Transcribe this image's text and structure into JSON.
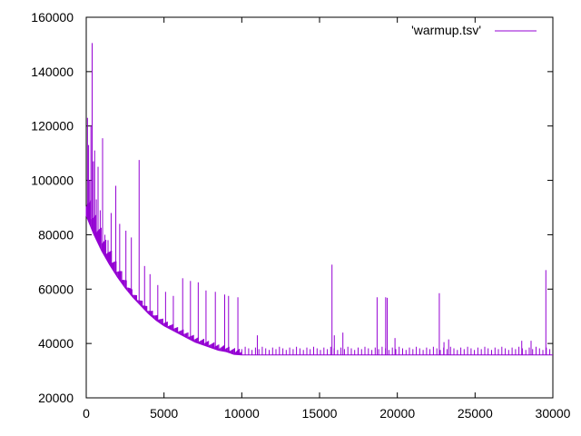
{
  "chart_data": {
    "type": "line",
    "title": "",
    "xlabel": "",
    "ylabel": "",
    "xlim": [
      0,
      30000
    ],
    "ylim": [
      20000,
      160000
    ],
    "x_ticks": [
      0,
      5000,
      10000,
      15000,
      20000,
      25000,
      30000
    ],
    "y_ticks": [
      20000,
      40000,
      60000,
      80000,
      100000,
      120000,
      140000,
      160000
    ],
    "x_tick_labels": [
      "0",
      "5000",
      "10000",
      "15000",
      "20000",
      "25000",
      "30000"
    ],
    "y_tick_labels": [
      "20000",
      "40000",
      "60000",
      "80000",
      "100000",
      "120000",
      "140000",
      "160000"
    ],
    "grid": false,
    "legend": "top-right",
    "series": [
      {
        "name": "'warmup.tsv'",
        "color": "#9400d3",
        "baseline": {
          "x": [
            0,
            500,
            1000,
            1500,
            2000,
            2500,
            3000,
            3500,
            4000,
            4500,
            5000,
            5500,
            6000,
            6500,
            7000,
            7500,
            8000,
            8500,
            9000,
            9500,
            10000,
            30000
          ],
          "y": [
            87000,
            80000,
            74000,
            69000,
            64500,
            60500,
            57000,
            54000,
            51000,
            48500,
            46500,
            45000,
            43500,
            42000,
            40500,
            39500,
            38500,
            37500,
            37000,
            36000,
            35800,
            35800
          ]
        },
        "spikes": [
          {
            "x": 80,
            "y": 123000
          },
          {
            "x": 150,
            "y": 113000
          },
          {
            "x": 220,
            "y": 100000
          },
          {
            "x": 300,
            "y": 120000
          },
          {
            "x": 380,
            "y": 150500
          },
          {
            "x": 460,
            "y": 107000
          },
          {
            "x": 540,
            "y": 111000
          },
          {
            "x": 650,
            "y": 93000
          },
          {
            "x": 760,
            "y": 105000
          },
          {
            "x": 900,
            "y": 89000
          },
          {
            "x": 1050,
            "y": 115500
          },
          {
            "x": 1200,
            "y": 80000
          },
          {
            "x": 1400,
            "y": 78000
          },
          {
            "x": 1600,
            "y": 88000
          },
          {
            "x": 1900,
            "y": 98000
          },
          {
            "x": 2150,
            "y": 84000
          },
          {
            "x": 2550,
            "y": 81500
          },
          {
            "x": 2900,
            "y": 79000
          },
          {
            "x": 3400,
            "y": 107500
          },
          {
            "x": 3750,
            "y": 68500
          },
          {
            "x": 4100,
            "y": 65500
          },
          {
            "x": 4600,
            "y": 61500
          },
          {
            "x": 5100,
            "y": 59000
          },
          {
            "x": 5600,
            "y": 57500
          },
          {
            "x": 6200,
            "y": 64000
          },
          {
            "x": 6700,
            "y": 63000
          },
          {
            "x": 7200,
            "y": 62500
          },
          {
            "x": 7700,
            "y": 59500
          },
          {
            "x": 8300,
            "y": 59000
          },
          {
            "x": 8900,
            "y": 58000
          },
          {
            "x": 9150,
            "y": 57500
          },
          {
            "x": 9750,
            "y": 57000
          },
          {
            "x": 11000,
            "y": 43000
          },
          {
            "x": 15800,
            "y": 69000
          },
          {
            "x": 15950,
            "y": 43000
          },
          {
            "x": 16500,
            "y": 44000
          },
          {
            "x": 18700,
            "y": 57000
          },
          {
            "x": 19250,
            "y": 57000
          },
          {
            "x": 19350,
            "y": 56800
          },
          {
            "x": 19850,
            "y": 42000
          },
          {
            "x": 22700,
            "y": 58500
          },
          {
            "x": 23000,
            "y": 40500
          },
          {
            "x": 23300,
            "y": 41500
          },
          {
            "x": 28000,
            "y": 41000
          },
          {
            "x": 28600,
            "y": 41000
          },
          {
            "x": 29550,
            "y": 67000
          }
        ]
      }
    ]
  }
}
